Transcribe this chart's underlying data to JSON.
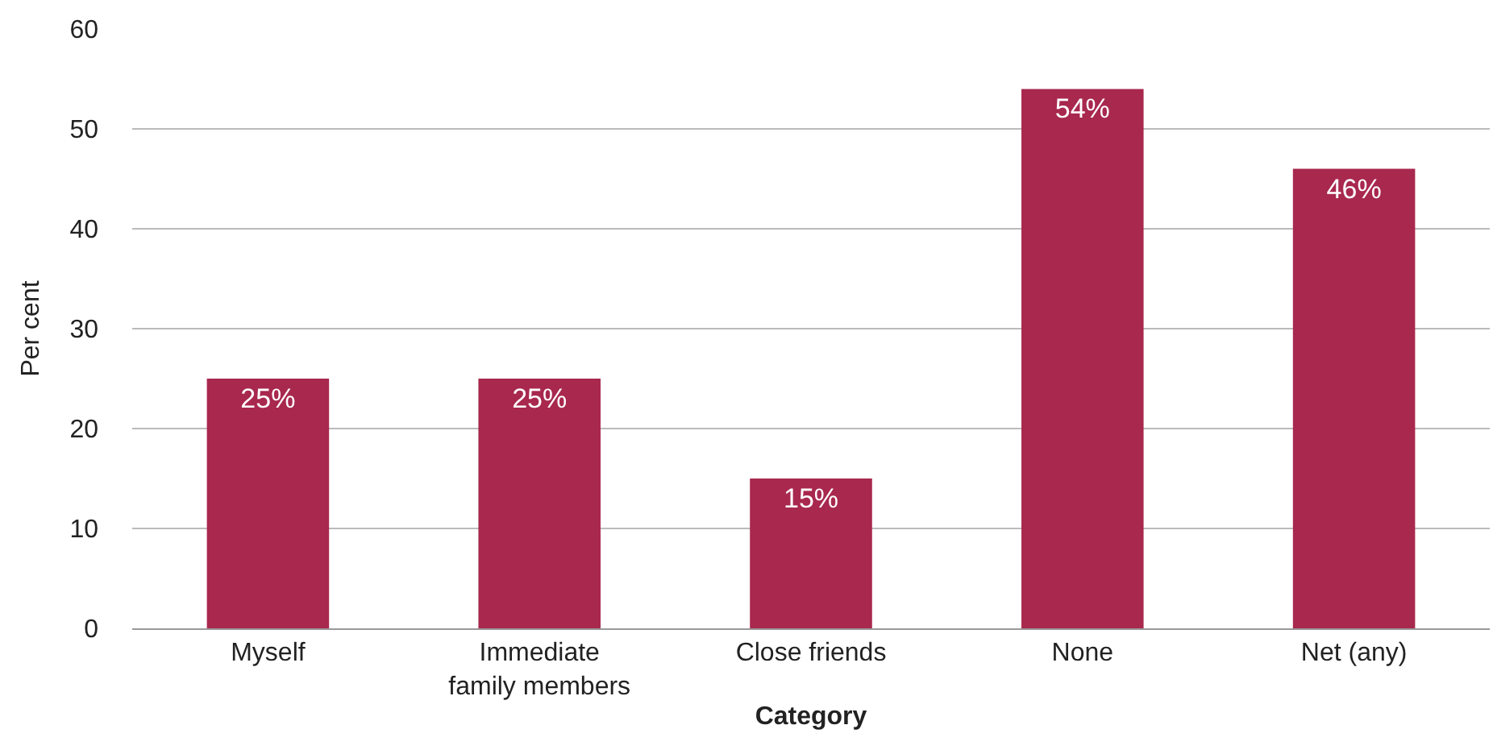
{
  "chart_data": {
    "type": "bar",
    "xlabel": "Category",
    "ylabel": "Per cent",
    "categories": [
      "Myself",
      "Immediate family members",
      "Close friends",
      "None",
      "Net (any)"
    ],
    "values": [
      25,
      25,
      15,
      54,
      46
    ],
    "value_labels": [
      "25%",
      "25%",
      "15%",
      "54%",
      "46%"
    ],
    "color": "#a8284e",
    "ylim": [
      0,
      60
    ],
    "yticks": [
      0,
      10,
      20,
      30,
      40,
      50,
      60
    ],
    "grid": "y"
  }
}
